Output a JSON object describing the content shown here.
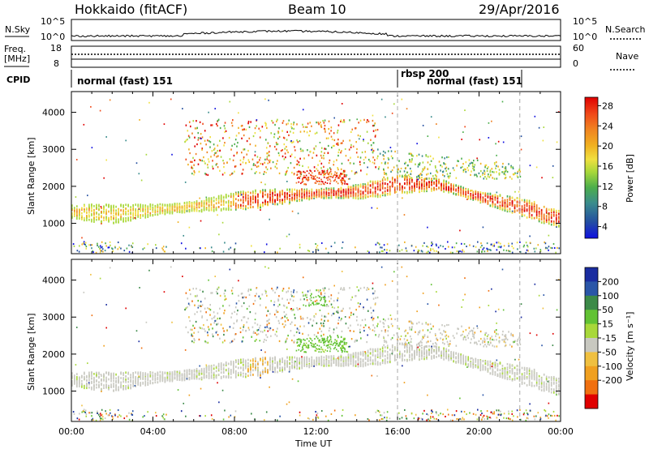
{
  "header": {
    "station": "Hokkaido (fitACF)",
    "beam": "Beam 10",
    "date": "29/Apr/2016"
  },
  "noise_panel": {
    "left_label": "N.Sky",
    "right_label": "N.Search",
    "left_ticks": [
      "10^5",
      "10^0"
    ],
    "right_ticks": [
      "10^5",
      "10^0"
    ]
  },
  "freq_panel": {
    "left_label_1": "Freq.",
    "left_label_2": "[MHz]",
    "right_label": "Nave",
    "left_ticks": [
      "18",
      "8"
    ],
    "right_ticks": [
      "60",
      "0"
    ]
  },
  "cpid_panel": {
    "label": "CPID",
    "segments": [
      "normal (fast) 151",
      "rbsp 200",
      "normal (fast) 151"
    ]
  },
  "chart_data": [
    {
      "type": "heatmap",
      "name": "power",
      "ylabel": "Slant Range [km]",
      "xlabel": "",
      "x_ticks": [
        "00:00",
        "04:00",
        "08:00",
        "12:00",
        "16:00",
        "20:00",
        "00:00"
      ],
      "y_ticks": [
        "1000",
        "2000",
        "3000",
        "4000"
      ],
      "ylim": [
        180,
        4560
      ],
      "xlim_hours": [
        0,
        24
      ],
      "colorbar": {
        "label": "Power [dB]",
        "ticks": [
          "28",
          "24",
          "20",
          "16",
          "12",
          "8",
          "4"
        ],
        "colors": [
          "#1010e0",
          "#2450a0",
          "#3a8c8c",
          "#4cae4c",
          "#a8d83a",
          "#f0e040",
          "#f0b020",
          "#f08020",
          "#f04a1a",
          "#e00000"
        ]
      },
      "dashed_lines_hours": [
        16,
        22
      ],
      "main_band": [
        {
          "hour": 0,
          "range_km": 1300
        },
        {
          "hour": 2,
          "range_km": 1250
        },
        {
          "hour": 4,
          "range_km": 1350
        },
        {
          "hour": 6,
          "range_km": 1450
        },
        {
          "hour": 8,
          "range_km": 1600
        },
        {
          "hour": 10,
          "range_km": 1700
        },
        {
          "hour": 12,
          "range_km": 1800
        },
        {
          "hour": 14,
          "range_km": 1850
        },
        {
          "hour": 16,
          "range_km": 2050
        },
        {
          "hour": 18,
          "range_km": 2050
        },
        {
          "hour": 20,
          "range_km": 1700
        },
        {
          "hour": 22,
          "range_km": 1450
        },
        {
          "hour": 24,
          "range_km": 1100
        }
      ]
    },
    {
      "type": "heatmap",
      "name": "velocity",
      "ylabel": "Slant Range [km]",
      "xlabel": "Time UT",
      "x_ticks": [
        "00:00",
        "04:00",
        "08:00",
        "12:00",
        "16:00",
        "20:00",
        "00:00"
      ],
      "y_ticks": [
        "1000",
        "2000",
        "3000",
        "4000"
      ],
      "ylim": [
        180,
        4560
      ],
      "xlim_hours": [
        0,
        24
      ],
      "colorbar": {
        "label": "Velocity [m s⁻¹]",
        "ticks": [
          "200",
          "100",
          "50",
          "15",
          "-15",
          "-50",
          "-100",
          "-200"
        ],
        "colors": [
          "#1a2ca0",
          "#2a56a8",
          "#3c8a48",
          "#62c234",
          "#a8d83a",
          "#c8c8c0",
          "#f0c040",
          "#f0a020",
          "#f07010",
          "#e00000"
        ]
      },
      "dashed_lines_hours": [
        16,
        22
      ]
    }
  ]
}
